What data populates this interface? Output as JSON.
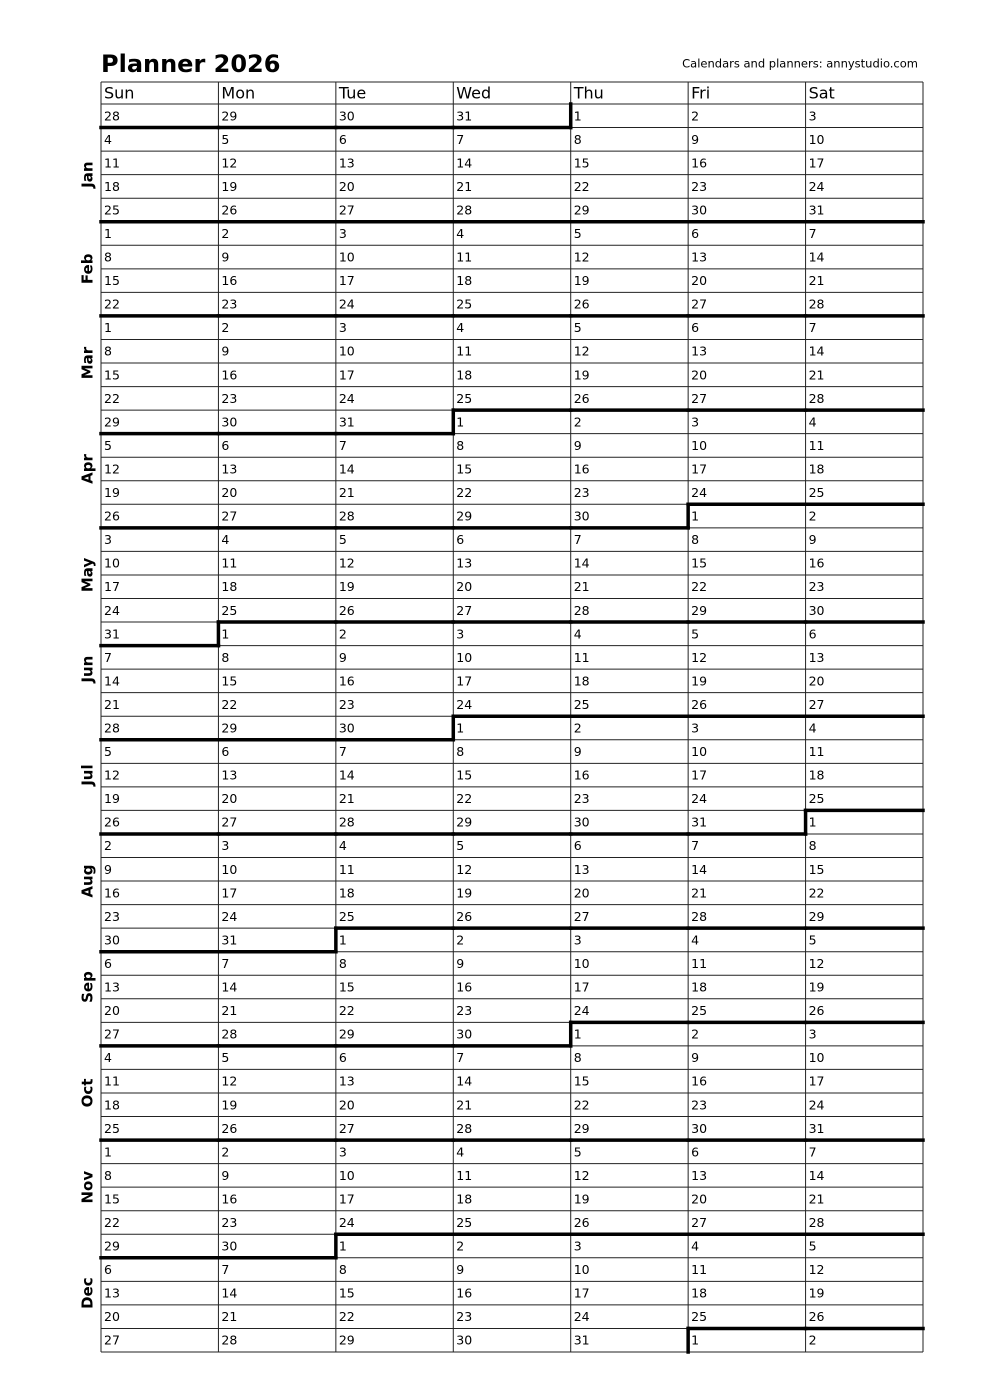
{
  "header": {
    "title": "Planner 2026",
    "credit": "Calendars and planners:  annystudio.com"
  },
  "days": [
    "Sun",
    "Mon",
    "Tue",
    "Wed",
    "Thu",
    "Fri",
    "Sat"
  ],
  "months": [
    "Jan",
    "Feb",
    "Mar",
    "Apr",
    "May",
    "Jun",
    "Jul",
    "Aug",
    "Sep",
    "Oct",
    "Nov",
    "Dec"
  ],
  "rows": [
    [
      28,
      29,
      30,
      31,
      1,
      2,
      3
    ],
    [
      4,
      5,
      6,
      7,
      8,
      9,
      10
    ],
    [
      11,
      12,
      13,
      14,
      15,
      16,
      17
    ],
    [
      18,
      19,
      20,
      21,
      22,
      23,
      24
    ],
    [
      25,
      26,
      27,
      28,
      29,
      30,
      31
    ],
    [
      1,
      2,
      3,
      4,
      5,
      6,
      7
    ],
    [
      8,
      9,
      10,
      11,
      12,
      13,
      14
    ],
    [
      15,
      16,
      17,
      18,
      19,
      20,
      21
    ],
    [
      22,
      23,
      24,
      25,
      26,
      27,
      28
    ],
    [
      1,
      2,
      3,
      4,
      5,
      6,
      7
    ],
    [
      8,
      9,
      10,
      11,
      12,
      13,
      14
    ],
    [
      15,
      16,
      17,
      18,
      19,
      20,
      21
    ],
    [
      22,
      23,
      24,
      25,
      26,
      27,
      28
    ],
    [
      29,
      30,
      31,
      1,
      2,
      3,
      4
    ],
    [
      5,
      6,
      7,
      8,
      9,
      10,
      11
    ],
    [
      12,
      13,
      14,
      15,
      16,
      17,
      18
    ],
    [
      19,
      20,
      21,
      22,
      23,
      24,
      25
    ],
    [
      26,
      27,
      28,
      29,
      30,
      1,
      2
    ],
    [
      3,
      4,
      5,
      6,
      7,
      8,
      9
    ],
    [
      10,
      11,
      12,
      13,
      14,
      15,
      16
    ],
    [
      17,
      18,
      19,
      20,
      21,
      22,
      23
    ],
    [
      24,
      25,
      26,
      27,
      28,
      29,
      30
    ],
    [
      31,
      1,
      2,
      3,
      4,
      5,
      6
    ],
    [
      7,
      8,
      9,
      10,
      11,
      12,
      13
    ],
    [
      14,
      15,
      16,
      17,
      18,
      19,
      20
    ],
    [
      21,
      22,
      23,
      24,
      25,
      26,
      27
    ],
    [
      28,
      29,
      30,
      1,
      2,
      3,
      4
    ],
    [
      5,
      6,
      7,
      8,
      9,
      10,
      11
    ],
    [
      12,
      13,
      14,
      15,
      16,
      17,
      18
    ],
    [
      19,
      20,
      21,
      22,
      23,
      24,
      25
    ],
    [
      26,
      27,
      28,
      29,
      30,
      31,
      1
    ],
    [
      2,
      3,
      4,
      5,
      6,
      7,
      8
    ],
    [
      9,
      10,
      11,
      12,
      13,
      14,
      15
    ],
    [
      16,
      17,
      18,
      19,
      20,
      21,
      22
    ],
    [
      23,
      24,
      25,
      26,
      27,
      28,
      29
    ],
    [
      30,
      31,
      1,
      2,
      3,
      4,
      5
    ],
    [
      6,
      7,
      8,
      9,
      10,
      11,
      12
    ],
    [
      13,
      14,
      15,
      16,
      17,
      18,
      19
    ],
    [
      20,
      21,
      22,
      23,
      24,
      25,
      26
    ],
    [
      27,
      28,
      29,
      30,
      1,
      2,
      3
    ],
    [
      4,
      5,
      6,
      7,
      8,
      9,
      10
    ],
    [
      11,
      12,
      13,
      14,
      15,
      16,
      17
    ],
    [
      18,
      19,
      20,
      21,
      22,
      23,
      24
    ],
    [
      25,
      26,
      27,
      28,
      29,
      30,
      31
    ],
    [
      1,
      2,
      3,
      4,
      5,
      6,
      7
    ],
    [
      8,
      9,
      10,
      11,
      12,
      13,
      14
    ],
    [
      15,
      16,
      17,
      18,
      19,
      20,
      21
    ],
    [
      22,
      23,
      24,
      25,
      26,
      27,
      28
    ],
    [
      29,
      30,
      1,
      2,
      3,
      4,
      5
    ],
    [
      6,
      7,
      8,
      9,
      10,
      11,
      12
    ],
    [
      13,
      14,
      15,
      16,
      17,
      18,
      19
    ],
    [
      20,
      21,
      22,
      23,
      24,
      25,
      26
    ],
    [
      27,
      28,
      29,
      30,
      31,
      1,
      2
    ]
  ]
}
